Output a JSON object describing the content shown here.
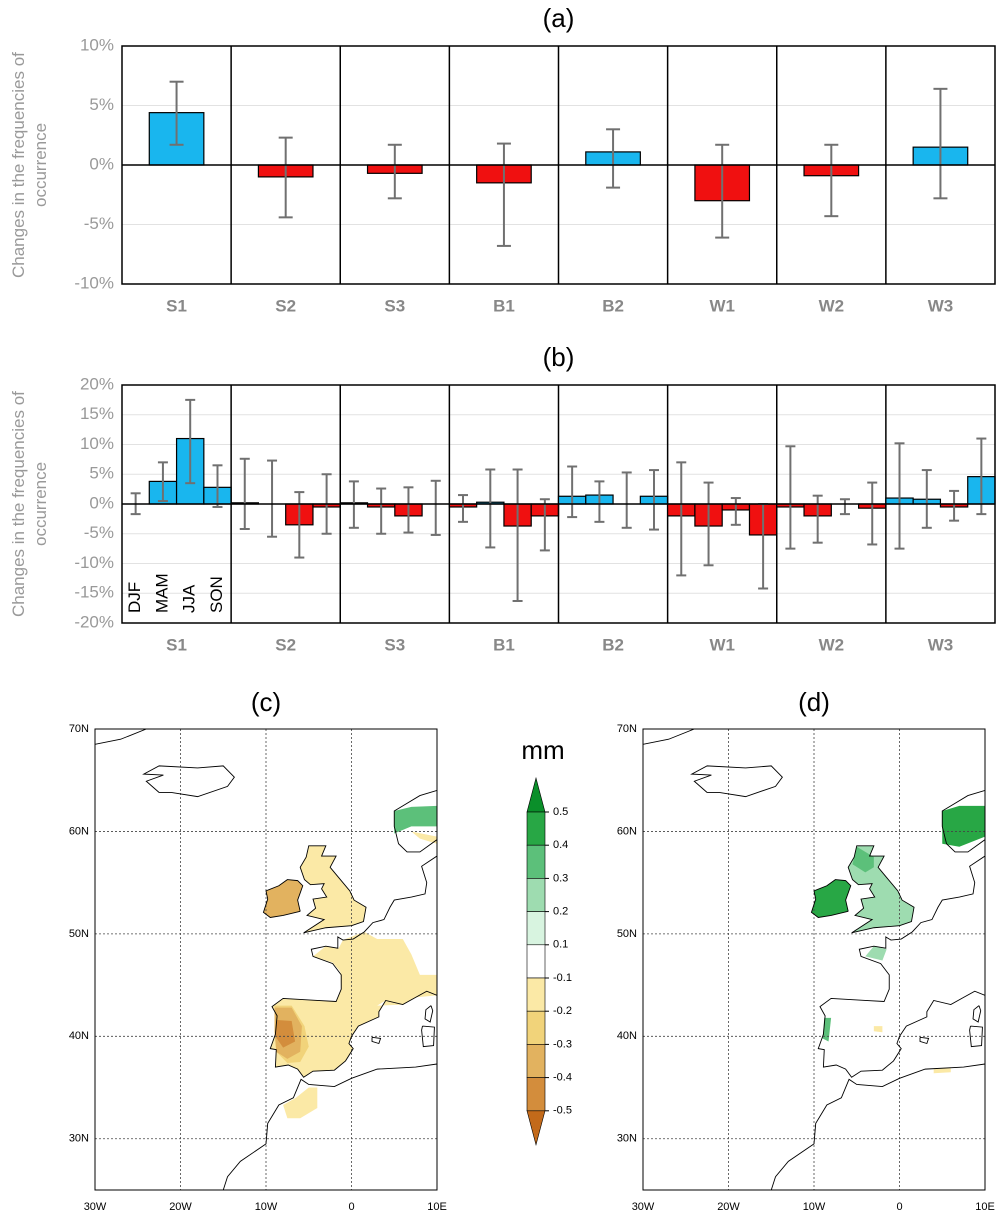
{
  "chart_data": [
    {
      "type": "bar",
      "title": "(a)",
      "ylabel": "Changes in the frequencies of occurrence",
      "categories": [
        "S1",
        "S2",
        "S3",
        "B1",
        "B2",
        "W1",
        "W2",
        "W3"
      ],
      "values": [
        4.4,
        -1.0,
        -0.7,
        -1.5,
        1.1,
        -3.0,
        -0.9,
        1.5
      ],
      "error_ranges": [
        [
          1.7,
          7.0
        ],
        [
          -4.4,
          2.3
        ],
        [
          -2.8,
          1.7
        ],
        [
          -6.8,
          1.8
        ],
        [
          -1.9,
          3.0
        ],
        [
          -6.1,
          1.7
        ],
        [
          -4.3,
          1.7
        ],
        [
          -2.8,
          6.4
        ]
      ],
      "positive_color": "#19b6ee",
      "negative_color": "#f01010",
      "grid": true,
      "ylim": [
        -10,
        10
      ],
      "yticks": [
        {
          "value": -10,
          "label": "-10%"
        },
        {
          "value": -5,
          "label": "-5%"
        },
        {
          "value": 0,
          "label": "0%"
        },
        {
          "value": 5,
          "label": "5%"
        },
        {
          "value": 10,
          "label": "10%"
        }
      ]
    },
    {
      "type": "bar",
      "title": "(b)",
      "ylabel": "Changes in the frequencies of occurrence",
      "categories": [
        "S1",
        "S2",
        "S3",
        "B1",
        "B2",
        "W1",
        "W2",
        "W3"
      ],
      "series": [
        {
          "name": "DJF",
          "values": [
            0,
            0.2,
            0.2,
            -0.5,
            1.3,
            -2.0,
            -0.5,
            1.0
          ],
          "error_ranges": [
            [
              -1.7,
              1.8
            ],
            [
              -4.2,
              7.6
            ],
            [
              -4.0,
              3.8
            ],
            [
              -3.0,
              1.5
            ],
            [
              -2.2,
              6.3
            ],
            [
              -12.0,
              7.0
            ],
            [
              -7.5,
              9.7
            ],
            [
              -7.5,
              10.2
            ]
          ]
        },
        {
          "name": "MAM",
          "values": [
            3.8,
            0,
            -0.5,
            0.3,
            1.5,
            -3.7,
            -2.0,
            0.8
          ],
          "error_ranges": [
            [
              0.5,
              7.0
            ],
            [
              -5.5,
              7.3
            ],
            [
              -5.0,
              2.6
            ],
            [
              -7.3,
              5.8
            ],
            [
              -3.0,
              3.8
            ],
            [
              -10.3,
              3.6
            ],
            [
              -6.5,
              1.4
            ],
            [
              -4.0,
              5.7
            ]
          ]
        },
        {
          "name": "JJA",
          "values": [
            11.0,
            -3.5,
            -2.0,
            -3.7,
            0,
            -1.0,
            0,
            -0.5
          ],
          "error_ranges": [
            [
              3.5,
              17.5
            ],
            [
              -9.0,
              2.0
            ],
            [
              -4.8,
              2.8
            ],
            [
              -16.3,
              5.8
            ],
            [
              -4.0,
              5.3
            ],
            [
              -3.5,
              1.0
            ],
            [
              -1.7,
              0.8
            ],
            [
              -2.8,
              2.2
            ]
          ]
        },
        {
          "name": "SON",
          "values": [
            2.8,
            -0.5,
            0,
            -2.0,
            1.3,
            -5.2,
            -0.7,
            4.6
          ],
          "error_ranges": [
            [
              -0.5,
              6.5
            ],
            [
              -5.0,
              5.0
            ],
            [
              -5.2,
              3.9
            ],
            [
              -7.8,
              0.8
            ],
            [
              -4.3,
              5.7
            ],
            [
              -14.2,
              0
            ],
            [
              -6.8,
              3.6
            ],
            [
              -1.7,
              11.0
            ]
          ]
        }
      ],
      "positive_color": "#19b6ee",
      "negative_color": "#f01010",
      "grid": true,
      "ylim": [
        -20,
        20
      ],
      "yticks": [
        {
          "value": -20,
          "label": "-20%"
        },
        {
          "value": -15,
          "label": "-15%"
        },
        {
          "value": -10,
          "label": "-10%"
        },
        {
          "value": -5,
          "label": "-5%"
        },
        {
          "value": 0,
          "label": "0%"
        },
        {
          "value": 5,
          "label": "5%"
        },
        {
          "value": 10,
          "label": "10%"
        },
        {
          "value": 15,
          "label": "15%"
        },
        {
          "value": 20,
          "label": "20%"
        }
      ]
    },
    {
      "type": "map",
      "title": "(c)",
      "xlim": [
        -30,
        10
      ],
      "ylim": [
        25,
        70
      ],
      "xticks": [
        {
          "value": -30,
          "label": "30W"
        },
        {
          "value": -20,
          "label": "20W"
        },
        {
          "value": -10,
          "label": "10W"
        },
        0,
        {
          "value": 10,
          "label": "10E"
        }
      ],
      "yticks": [
        {
          "value": 30,
          "label": "30N"
        },
        {
          "value": 40,
          "label": "40N"
        },
        {
          "value": 50,
          "label": "50N"
        },
        {
          "value": 60,
          "label": "60N"
        },
        {
          "value": 70,
          "label": "70N"
        }
      ],
      "colorbar": {
        "label": "mm",
        "levels": [
          0.5,
          0.4,
          0.3,
          0.2,
          0.1,
          -0.1,
          -0.2,
          -0.3,
          -0.4,
          -0.5
        ],
        "colors": [
          "#0a8f2a",
          "#28a745",
          "#5cc07a",
          "#9edcb0",
          "#d8f4e0",
          "#ffffff",
          "#fbe9a6",
          "#f1d37a",
          "#e2b25f",
          "#d38d3c",
          "#c36a1a"
        ]
      }
    },
    {
      "type": "map",
      "title": "(d)",
      "xlim": [
        -30,
        10
      ],
      "ylim": [
        25,
        70
      ],
      "xticks": [
        {
          "value": -30,
          "label": "30W"
        },
        {
          "value": -20,
          "label": "20W"
        },
        {
          "value": -10,
          "label": "10W"
        },
        0,
        {
          "value": 10,
          "label": "10E"
        }
      ],
      "yticks": [
        {
          "value": 30,
          "label": "30N"
        },
        {
          "value": 40,
          "label": "40N"
        },
        {
          "value": 50,
          "label": "50N"
        },
        {
          "value": 60,
          "label": "60N"
        },
        {
          "value": 70,
          "label": "70N"
        }
      ]
    }
  ]
}
